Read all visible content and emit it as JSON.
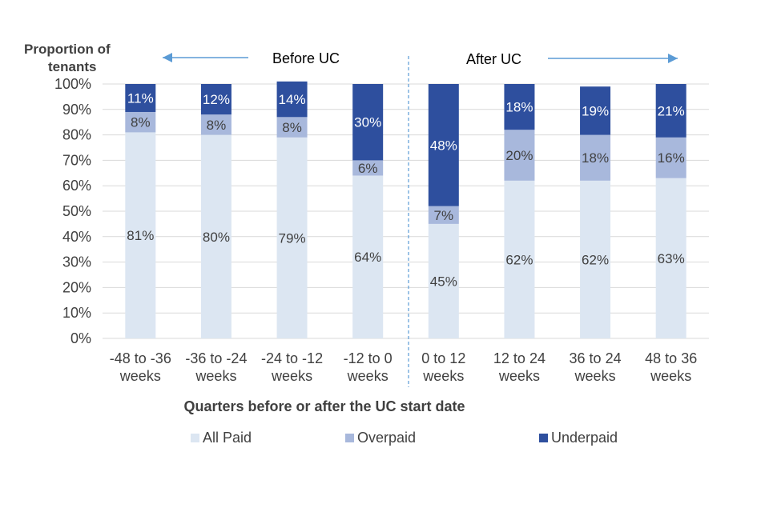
{
  "chart_data": {
    "type": "bar",
    "stacked": true,
    "ylabel_lines": [
      "Proportion of",
      "tenants"
    ],
    "xlabel": "Quarters before or after the UC start date",
    "ylim": [
      0,
      100
    ],
    "yticks": [
      "0%",
      "10%",
      "20%",
      "30%",
      "40%",
      "50%",
      "60%",
      "70%",
      "80%",
      "90%",
      "100%"
    ],
    "categories": [
      [
        "-48 to -36",
        "weeks"
      ],
      [
        "-36 to -24",
        "weeks"
      ],
      [
        "-24 to -12",
        "weeks"
      ],
      [
        "-12 to 0",
        "weeks"
      ],
      [
        "0 to 12",
        "weeks"
      ],
      [
        "12 to 24",
        "weeks"
      ],
      [
        "36 to 24",
        "weeks"
      ],
      [
        "48 to 36",
        "weeks"
      ]
    ],
    "series": [
      {
        "name": "All Paid",
        "color": "#dce6f2",
        "values": [
          81,
          80,
          79,
          64,
          45,
          62,
          62,
          63
        ]
      },
      {
        "name": "Overpaid",
        "color": "#a8b8dc",
        "values": [
          8,
          8,
          8,
          6,
          7,
          20,
          18,
          16
        ]
      },
      {
        "name": "Underpaid",
        "color": "#2e4f9e",
        "values": [
          11,
          12,
          14,
          30,
          48,
          18,
          19,
          21
        ]
      }
    ],
    "annotations": {
      "before": "Before UC",
      "after": "After UC"
    },
    "grid": true,
    "legend_position": "bottom"
  }
}
